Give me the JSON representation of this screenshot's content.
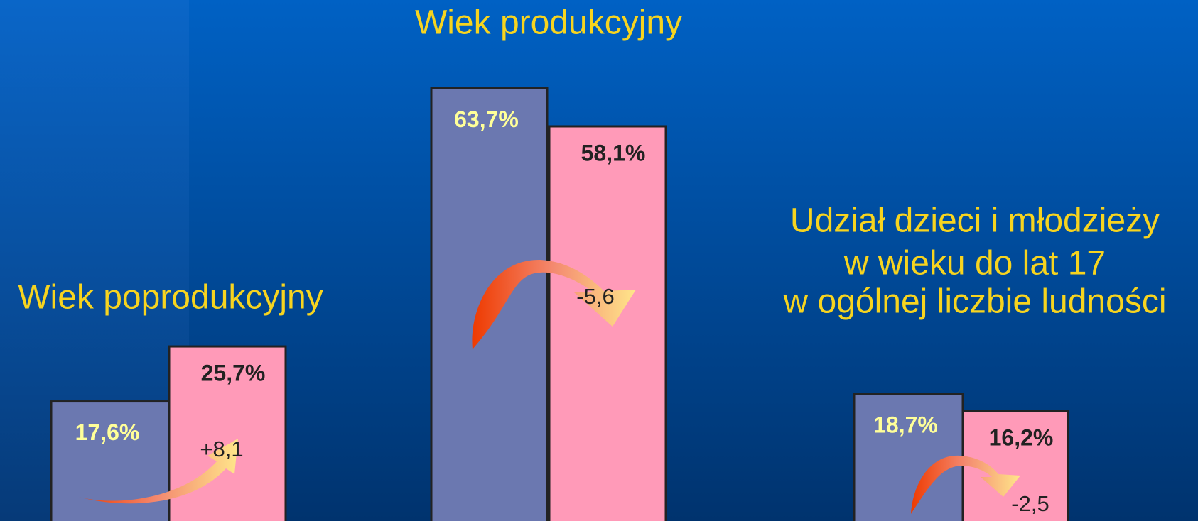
{
  "chart_data": {
    "type": "bar",
    "categories": [
      [
        "Wiek poprodukcyjny"
      ],
      [
        "Wiek produkcyjny"
      ],
      [
        "Udział dzieci i młodzieży",
        "w wieku do lat 17",
        "w ogólnej liczbie ludności"
      ]
    ],
    "series": [
      {
        "color": "#6b78b0",
        "values": [
          17.6,
          63.7,
          18.7
        ],
        "value_labels": [
          "17,6%",
          "63,7%",
          "18,7%"
        ]
      },
      {
        "color": "#ff9ab8",
        "values": [
          25.7,
          58.1,
          16.2
        ],
        "value_labels": [
          "25,7%",
          "58,1%",
          "16,2%"
        ]
      }
    ],
    "changes": [
      8.1,
      -5.6,
      -2.5
    ],
    "change_labels": [
      "+8,1",
      "-5,6",
      "-2,5"
    ]
  }
}
